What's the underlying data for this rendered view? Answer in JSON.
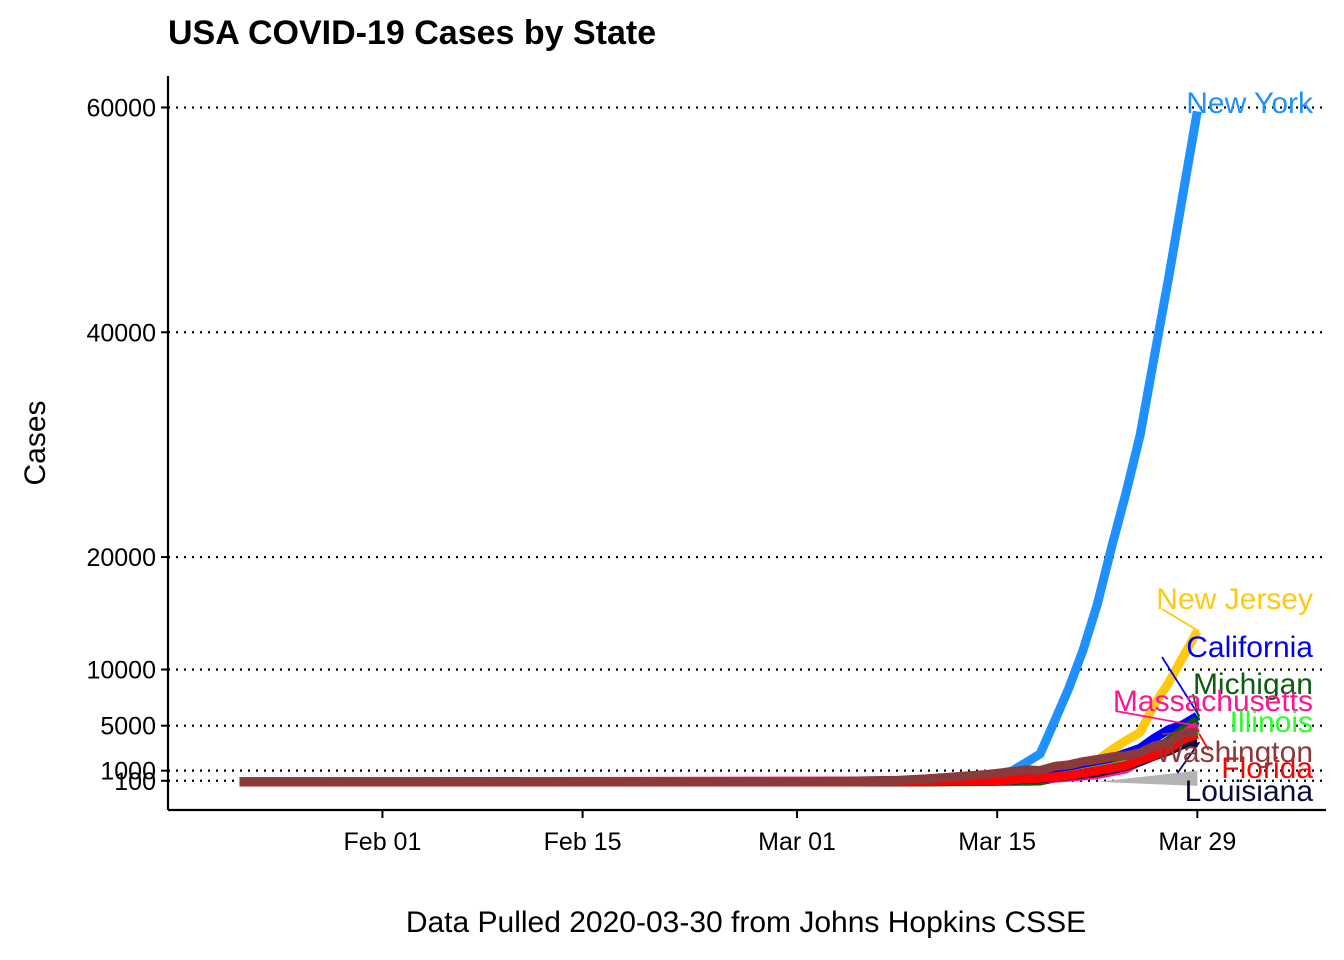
{
  "title": "USA COVID-19 Cases by State",
  "chart_data": {
    "type": "line",
    "title": "USA COVID-19 Cases by State",
    "xlabel": "Data Pulled 2020-03-30 from Johns Hopkins CSSE",
    "ylabel": "Cases",
    "x_range": [
      "2020-01-17",
      "2020-04-07"
    ],
    "ylim": [
      -2500,
      62800
    ],
    "x_ticks": [
      {
        "date": "2020-02-01",
        "label": "Feb 01"
      },
      {
        "date": "2020-02-15",
        "label": "Feb 15"
      },
      {
        "date": "2020-03-01",
        "label": "Mar 01"
      },
      {
        "date": "2020-03-15",
        "label": "Mar 15"
      },
      {
        "date": "2020-03-29",
        "label": "Mar 29"
      }
    ],
    "y_ticks": [
      100,
      1000,
      5000,
      10000,
      20000,
      40000,
      60000
    ],
    "y_tick_labels": [
      "100",
      "1000",
      "5000",
      "10000",
      "20000",
      "40000",
      "60000"
    ],
    "grid": "horizontal dotted",
    "legend": "direct labels at line ends",
    "other_states_band": {
      "color": "#b3b3b3",
      "x": [
        "2020-03-22",
        "2020-03-29"
      ],
      "y": [
        0,
        1000
      ]
    },
    "series": [
      {
        "name": "New York",
        "color": "#1e90ff",
        "label_color": "#1e90ff",
        "points": [
          [
            "2020-01-22",
            0
          ],
          [
            "2020-03-01",
            1
          ],
          [
            "2020-03-05",
            22
          ],
          [
            "2020-03-08",
            105
          ],
          [
            "2020-03-10",
            173
          ],
          [
            "2020-03-12",
            325
          ],
          [
            "2020-03-14",
            610
          ],
          [
            "2020-03-15",
            732
          ],
          [
            "2020-03-16",
            950
          ],
          [
            "2020-03-17",
            1706
          ],
          [
            "2020-03-18",
            2495
          ],
          [
            "2020-03-19",
            5365
          ],
          [
            "2020-03-20",
            8310
          ],
          [
            "2020-03-21",
            11710
          ],
          [
            "2020-03-22",
            15800
          ],
          [
            "2020-03-23",
            20884
          ],
          [
            "2020-03-24",
            25681
          ],
          [
            "2020-03-25",
            30841
          ],
          [
            "2020-03-26",
            37877
          ],
          [
            "2020-03-27",
            44876
          ],
          [
            "2020-03-28",
            52318
          ],
          [
            "2020-03-29",
            59648
          ]
        ]
      },
      {
        "name": "New Jersey",
        "color": "#ffc90e",
        "label_color": "#ffc90e",
        "points": [
          [
            "2020-01-22",
            0
          ],
          [
            "2020-03-04",
            1
          ],
          [
            "2020-03-10",
            15
          ],
          [
            "2020-03-15",
            98
          ],
          [
            "2020-03-17",
            267
          ],
          [
            "2020-03-18",
            427
          ],
          [
            "2020-03-19",
            742
          ],
          [
            "2020-03-20",
            890
          ],
          [
            "2020-03-21",
            1327
          ],
          [
            "2020-03-22",
            1914
          ],
          [
            "2020-03-23",
            2844
          ],
          [
            "2020-03-24",
            3675
          ],
          [
            "2020-03-25",
            4402
          ],
          [
            "2020-03-26",
            6876
          ],
          [
            "2020-03-27",
            8825
          ],
          [
            "2020-03-28",
            11124
          ],
          [
            "2020-03-29",
            13386
          ]
        ]
      },
      {
        "name": "California",
        "color": "#0000ff",
        "label_color": "#0000ff",
        "points": [
          [
            "2020-01-22",
            0
          ],
          [
            "2020-01-26",
            2
          ],
          [
            "2020-03-01",
            24
          ],
          [
            "2020-03-10",
            144
          ],
          [
            "2020-03-15",
            426
          ],
          [
            "2020-03-17",
            698
          ],
          [
            "2020-03-19",
            1067
          ],
          [
            "2020-03-21",
            1646
          ],
          [
            "2020-03-23",
            2108
          ],
          [
            "2020-03-25",
            2998
          ],
          [
            "2020-03-26",
            3899
          ],
          [
            "2020-03-27",
            4657
          ],
          [
            "2020-03-28",
            5095
          ],
          [
            "2020-03-29",
            5852
          ]
        ]
      },
      {
        "name": "Michigan",
        "color": "#0b5d0b",
        "label_color": "#0b5d0b",
        "points": [
          [
            "2020-01-22",
            0
          ],
          [
            "2020-03-10",
            2
          ],
          [
            "2020-03-14",
            33
          ],
          [
            "2020-03-17",
            65
          ],
          [
            "2020-03-18",
            83
          ],
          [
            "2020-03-19",
            334
          ],
          [
            "2020-03-20",
            552
          ],
          [
            "2020-03-21",
            788
          ],
          [
            "2020-03-22",
            1037
          ],
          [
            "2020-03-23",
            1329
          ],
          [
            "2020-03-24",
            1793
          ],
          [
            "2020-03-25",
            2296
          ],
          [
            "2020-03-26",
            2845
          ],
          [
            "2020-03-27",
            3657
          ],
          [
            "2020-03-28",
            4650
          ],
          [
            "2020-03-29",
            5488
          ]
        ]
      },
      {
        "name": "Massachusetts",
        "color": "#ff1493",
        "label_color": "#ff1493",
        "points": [
          [
            "2020-01-22",
            0
          ],
          [
            "2020-03-10",
            92
          ],
          [
            "2020-03-15",
            164
          ],
          [
            "2020-03-18",
            256
          ],
          [
            "2020-03-20",
            413
          ],
          [
            "2020-03-22",
            646
          ],
          [
            "2020-03-24",
            1159
          ],
          [
            "2020-03-25",
            1838
          ],
          [
            "2020-03-26",
            2417
          ],
          [
            "2020-03-27",
            3240
          ],
          [
            "2020-03-28",
            4257
          ],
          [
            "2020-03-29",
            4955
          ]
        ]
      },
      {
        "name": "Illinois",
        "color": "#2bff2b",
        "label_color": "#2bff2b",
        "points": [
          [
            "2020-01-22",
            0
          ],
          [
            "2020-03-10",
            19
          ],
          [
            "2020-03-15",
            93
          ],
          [
            "2020-03-18",
            288
          ],
          [
            "2020-03-20",
            585
          ],
          [
            "2020-03-22",
            1049
          ],
          [
            "2020-03-24",
            1535
          ],
          [
            "2020-03-25",
            1865
          ],
          [
            "2020-03-26",
            2538
          ],
          [
            "2020-03-27",
            3026
          ],
          [
            "2020-03-28",
            3491
          ],
          [
            "2020-03-29",
            4596
          ]
        ]
      },
      {
        "name": "Louisiana",
        "color": "#0a0a3c",
        "label_color": "#0a0a3c",
        "points": [
          [
            "2020-01-22",
            0
          ],
          [
            "2020-03-10",
            1
          ],
          [
            "2020-03-15",
            91
          ],
          [
            "2020-03-18",
            280
          ],
          [
            "2020-03-20",
            537
          ],
          [
            "2020-03-22",
            837
          ],
          [
            "2020-03-24",
            1388
          ],
          [
            "2020-03-25",
            1795
          ],
          [
            "2020-03-26",
            2305
          ],
          [
            "2020-03-27",
            2746
          ],
          [
            "2020-03-28",
            3315
          ],
          [
            "2020-03-29",
            3540
          ]
        ]
      },
      {
        "name": "Florida",
        "color": "#ff0000",
        "label_color": "#ff0000",
        "points": [
          [
            "2020-01-22",
            0
          ],
          [
            "2020-03-02",
            2
          ],
          [
            "2020-03-10",
            28
          ],
          [
            "2020-03-15",
            116
          ],
          [
            "2020-03-18",
            328
          ],
          [
            "2020-03-20",
            563
          ],
          [
            "2020-03-22",
            1004
          ],
          [
            "2020-03-24",
            1467
          ],
          [
            "2020-03-25",
            1977
          ],
          [
            "2020-03-26",
            2355
          ],
          [
            "2020-03-27",
            2900
          ],
          [
            "2020-03-28",
            3763
          ],
          [
            "2020-03-29",
            4246
          ]
        ]
      },
      {
        "name": "Washington",
        "color": "#8b3a3a",
        "label_color": "#8b3a3a",
        "points": [
          [
            "2020-01-22",
            1
          ],
          [
            "2020-02-28",
            2
          ],
          [
            "2020-03-01",
            18
          ],
          [
            "2020-03-05",
            75
          ],
          [
            "2020-03-08",
            136
          ],
          [
            "2020-03-10",
            267
          ],
          [
            "2020-03-12",
            442
          ],
          [
            "2020-03-14",
            643
          ],
          [
            "2020-03-15",
            769
          ],
          [
            "2020-03-16",
            904
          ],
          [
            "2020-03-17",
            1076
          ],
          [
            "2020-03-18",
            1014
          ],
          [
            "2020-03-19",
            1376
          ],
          [
            "2020-03-20",
            1524
          ],
          [
            "2020-03-21",
            1793
          ],
          [
            "2020-03-22",
            1996
          ],
          [
            "2020-03-23",
            2221
          ],
          [
            "2020-03-24",
            2328
          ],
          [
            "2020-03-25",
            2591
          ],
          [
            "2020-03-26",
            3207
          ],
          [
            "2020-03-27",
            3477
          ],
          [
            "2020-03-28",
            4311
          ],
          [
            "2020-03-29",
            4493
          ]
        ]
      }
    ]
  }
}
